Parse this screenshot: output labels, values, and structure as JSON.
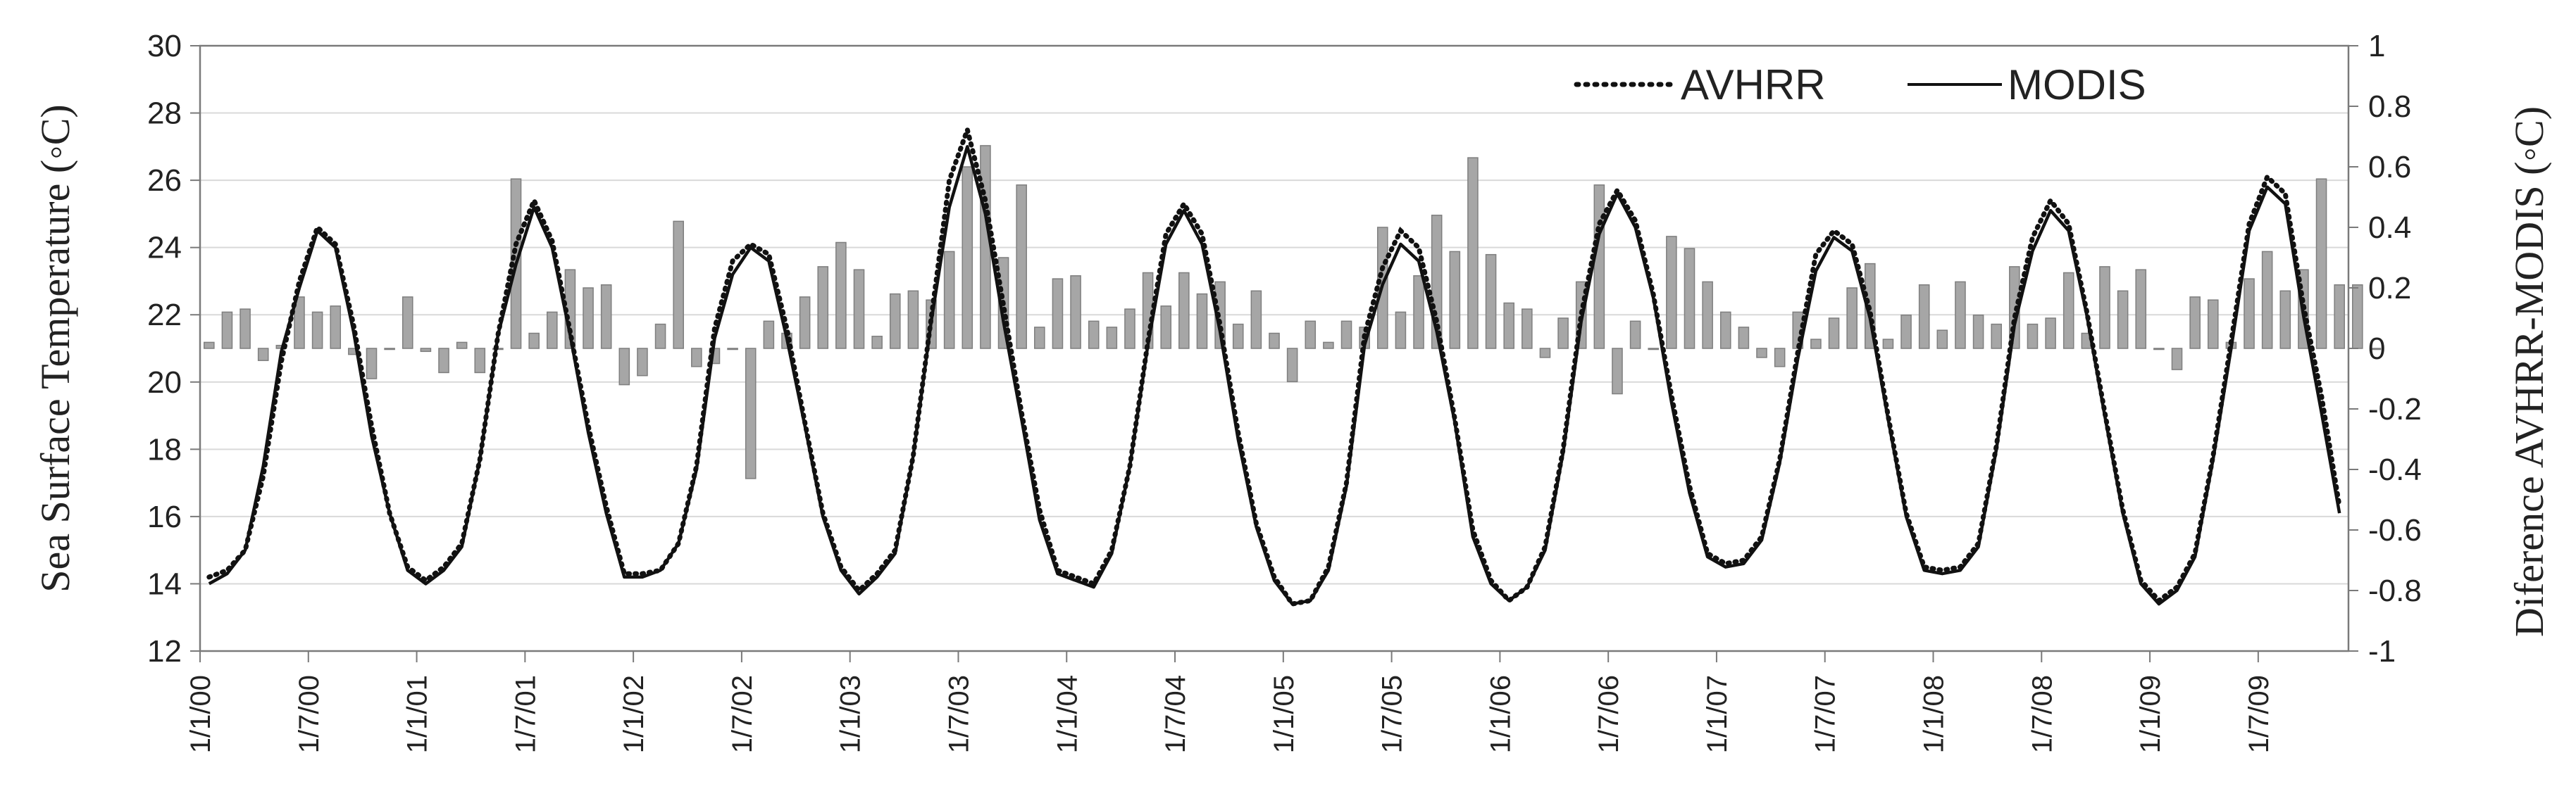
{
  "chart_data": {
    "type": "line",
    "title": "",
    "ylabel": "Sea Surface Temperature (◦C)",
    "y2label": "Diference AVHRR-MODIS (◦C)",
    "xlabel": "",
    "ylim": [
      12,
      30
    ],
    "yticks": [
      "12",
      "14",
      "16",
      "18",
      "20",
      "22",
      "24",
      "26",
      "28",
      "30"
    ],
    "y2lim": [
      -1,
      1
    ],
    "y2ticks": [
      "-1",
      "-0.8",
      "-0.6",
      "-0.4",
      "-0.2",
      "0",
      "0.2",
      "0.4",
      "0.6",
      "0.8",
      "1"
    ],
    "xticks": [
      "1/1/00",
      "1/7/00",
      "1/1/01",
      "1/7/01",
      "1/1/02",
      "1/7/02",
      "1/1/03",
      "1/7/03",
      "1/1/04",
      "1/7/04",
      "1/1/05",
      "1/7/05",
      "1/1/06",
      "1/7/06",
      "1/1/07",
      "1/7/07",
      "1/1/08",
      "1/7/08",
      "1/1/09",
      "1/7/09"
    ],
    "grid": true,
    "legend_position": "top-right",
    "series": [
      {
        "name": "AVHRR",
        "style": "dotted",
        "axis": "left",
        "values": [
          14.2,
          14.4,
          15.0,
          17.2,
          20.6,
          23.0,
          24.6,
          24.1,
          21.7,
          18.7,
          16.1,
          14.5,
          14.1,
          14.5,
          15.2,
          17.7,
          21.4,
          24.1,
          25.4,
          24.2,
          21.5,
          18.7,
          16.3,
          14.3,
          14.3,
          14.4,
          15.2,
          17.5,
          21.6,
          23.6,
          24.1,
          23.8,
          21.6,
          18.8,
          16.1,
          14.5,
          13.8,
          14.3,
          15.0,
          17.8,
          21.9,
          26.0,
          27.5,
          25.4,
          22.3,
          19.1,
          16.2,
          14.4,
          14.2,
          14.0,
          15.0,
          17.5,
          21.2,
          24.4,
          25.3,
          24.4,
          21.7,
          18.5,
          15.8,
          14.2,
          13.4,
          13.5,
          14.5,
          17.0,
          21.4,
          23.4,
          24.5,
          24.0,
          21.8,
          18.9,
          15.6,
          14.1,
          13.5,
          13.9,
          15.1,
          18.0,
          22.0,
          24.7,
          25.7,
          24.8,
          22.6,
          19.6,
          16.9,
          14.9,
          14.6,
          14.7,
          15.4,
          17.7,
          20.9,
          23.8,
          24.5,
          24.1,
          22.1,
          19.0,
          16.1,
          14.5,
          14.4,
          14.5,
          15.2,
          18.1,
          21.9,
          24.3,
          25.4,
          24.7,
          22.1,
          19.1,
          16.2,
          14.1,
          13.5,
          13.9,
          14.9,
          17.8,
          21.2,
          24.7,
          26.1,
          25.6,
          22.3,
          19.6,
          16.3
        ]
      },
      {
        "name": "MODIS",
        "style": "solid",
        "axis": "left",
        "values": [
          14.0,
          14.3,
          15.0,
          17.5,
          20.9,
          22.8,
          24.5,
          24.0,
          21.5,
          18.4,
          16.1,
          14.4,
          14.0,
          14.4,
          15.1,
          17.7,
          21.4,
          23.5,
          25.2,
          24.0,
          21.4,
          18.5,
          16.1,
          14.2,
          14.2,
          14.4,
          15.2,
          17.4,
          21.3,
          23.2,
          24.0,
          23.6,
          21.3,
          18.7,
          16.0,
          14.4,
          13.7,
          14.2,
          14.9,
          17.8,
          21.8,
          25.2,
          27.0,
          25.0,
          21.8,
          18.9,
          15.9,
          14.3,
          14.1,
          13.9,
          14.9,
          17.5,
          21.1,
          24.1,
          25.1,
          24.1,
          21.5,
          18.3,
          15.7,
          14.1,
          13.4,
          13.5,
          14.4,
          16.9,
          21.1,
          22.9,
          24.1,
          23.6,
          21.5,
          18.8,
          15.4,
          14.0,
          13.5,
          13.9,
          15.0,
          17.9,
          21.8,
          24.4,
          25.6,
          24.6,
          22.5,
          19.4,
          16.7,
          14.8,
          14.5,
          14.6,
          15.3,
          17.6,
          20.7,
          23.3,
          24.3,
          23.9,
          21.9,
          18.9,
          16.0,
          14.4,
          14.3,
          14.4,
          15.1,
          18.0,
          21.7,
          23.9,
          25.1,
          24.5,
          22.0,
          19.0,
          16.1,
          14.0,
          13.4,
          13.8,
          14.8,
          17.7,
          21.0,
          24.5,
          25.8,
          25.3,
          22.0,
          19.1,
          16.1
        ]
      },
      {
        "name": "",
        "type": "bar",
        "axis": "right",
        "values": [
          0.02,
          0.12,
          0.13,
          -0.04,
          0.01,
          0.17,
          0.12,
          0.14,
          -0.02,
          -0.1,
          0.0,
          0.17,
          -0.01,
          -0.08,
          0.02,
          -0.08,
          0.0,
          0.56,
          0.05,
          0.12,
          0.26,
          0.2,
          0.21,
          -0.12,
          -0.09,
          0.08,
          0.42,
          -0.06,
          -0.05,
          0.0,
          -0.43,
          0.09,
          0.05,
          0.17,
          0.27,
          0.35,
          0.26,
          0.04,
          0.18,
          0.19,
          0.16,
          0.32,
          0.6,
          0.67,
          0.3,
          0.54,
          0.07,
          0.23,
          0.24,
          0.09,
          0.07,
          0.13,
          0.25,
          0.14,
          0.25,
          0.18,
          0.22,
          0.08,
          0.19,
          0.05,
          -0.11,
          0.09,
          0.02,
          0.09,
          0.07,
          0.4,
          0.12,
          0.24,
          0.44,
          0.32,
          0.63,
          0.31,
          0.15,
          0.13,
          -0.03,
          0.1,
          0.22,
          0.54,
          -0.15,
          0.09,
          0.0,
          0.37,
          0.33,
          0.22,
          0.12,
          0.07,
          -0.03,
          -0.06,
          0.12,
          0.03,
          0.1,
          0.2,
          0.28,
          0.03,
          0.11,
          0.21,
          0.06,
          0.22,
          0.11,
          0.08,
          0.27,
          0.08,
          0.1,
          0.25,
          0.05,
          0.27,
          0.19,
          0.26,
          0.0,
          -0.07,
          0.17,
          0.16,
          0.02,
          0.23,
          0.32,
          0.19,
          0.26,
          0.56,
          0.21,
          0.21,
          0.0
        ]
      }
    ]
  }
}
